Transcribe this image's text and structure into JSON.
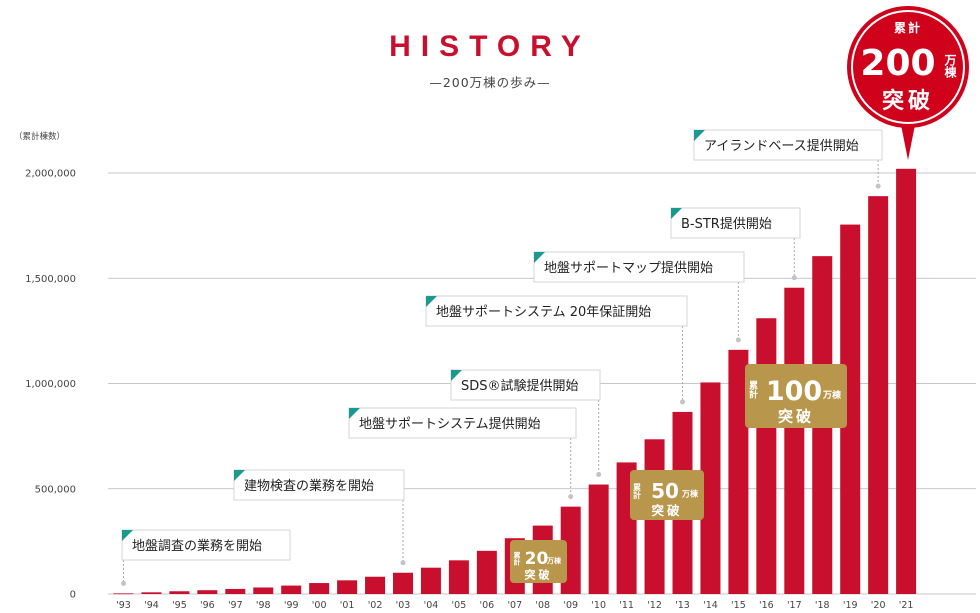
{
  "header": {
    "title": "HISTORY",
    "subtitle": "—200万棟の歩み—"
  },
  "chart_data": {
    "type": "bar",
    "title": "HISTORY",
    "subtitle": "—200万棟の歩み—",
    "ylabel": "（累計棟数）",
    "xlabel": "",
    "ylim": [
      0,
      2000000
    ],
    "yticks": [
      0,
      500000,
      1000000,
      1500000,
      2000000
    ],
    "ytick_labels": [
      "0",
      "500,000",
      "1,000,000",
      "1,500,000",
      "2,000,000"
    ],
    "grid": true,
    "categories": [
      "'93",
      "'94",
      "'95",
      "'96",
      "'97",
      "'98",
      "'99",
      "'00",
      "'01",
      "'02",
      "'03",
      "'04",
      "'05",
      "'06",
      "'07",
      "'08",
      "'09",
      "'10",
      "'11",
      "'12",
      "'13",
      "'14",
      "'15",
      "'16",
      "'17",
      "'18",
      "'19",
      "'20",
      "'21"
    ],
    "values": [
      3000,
      8000,
      13000,
      18000,
      24000,
      31000,
      40000,
      52000,
      65000,
      82000,
      101000,
      125000,
      160000,
      205000,
      265000,
      325000,
      415000,
      520000,
      625000,
      735000,
      865000,
      1005000,
      1160000,
      1310000,
      1455000,
      1605000,
      1755000,
      1890000,
      2020000
    ],
    "bar_color": "#c8102e",
    "annotations": [
      {
        "text": "地盤調査の業務を開始",
        "category": "'93"
      },
      {
        "text": "建物検査の業務を開始",
        "category": "'03"
      },
      {
        "text": "地盤サポートシステム提供開始",
        "category": "'09"
      },
      {
        "text": "SDS®試験提供開始",
        "category": "'10"
      },
      {
        "text": "地盤サポートシステム 20年保証開始",
        "category": "'13"
      },
      {
        "text": "地盤サポートマップ提供開始",
        "category": "'15"
      },
      {
        "text": "B-STR提供開始",
        "category": "'17"
      },
      {
        "text": "アイランドベース提供開始",
        "category": "'20"
      }
    ],
    "milestones": [
      {
        "prefix": "累計",
        "number": "20",
        "unit": "万棟",
        "suffix": "突破"
      },
      {
        "prefix": "累計",
        "number": "50",
        "unit": "万棟",
        "suffix": "突破"
      },
      {
        "prefix": "累計",
        "number": "100",
        "unit": "万棟",
        "suffix": "突破"
      },
      {
        "prefix": "累計",
        "number": "200",
        "unit": "万棟",
        "suffix": "突破"
      }
    ],
    "milestone_color": "#b8964b",
    "final_badge_color": "#d0021b"
  }
}
